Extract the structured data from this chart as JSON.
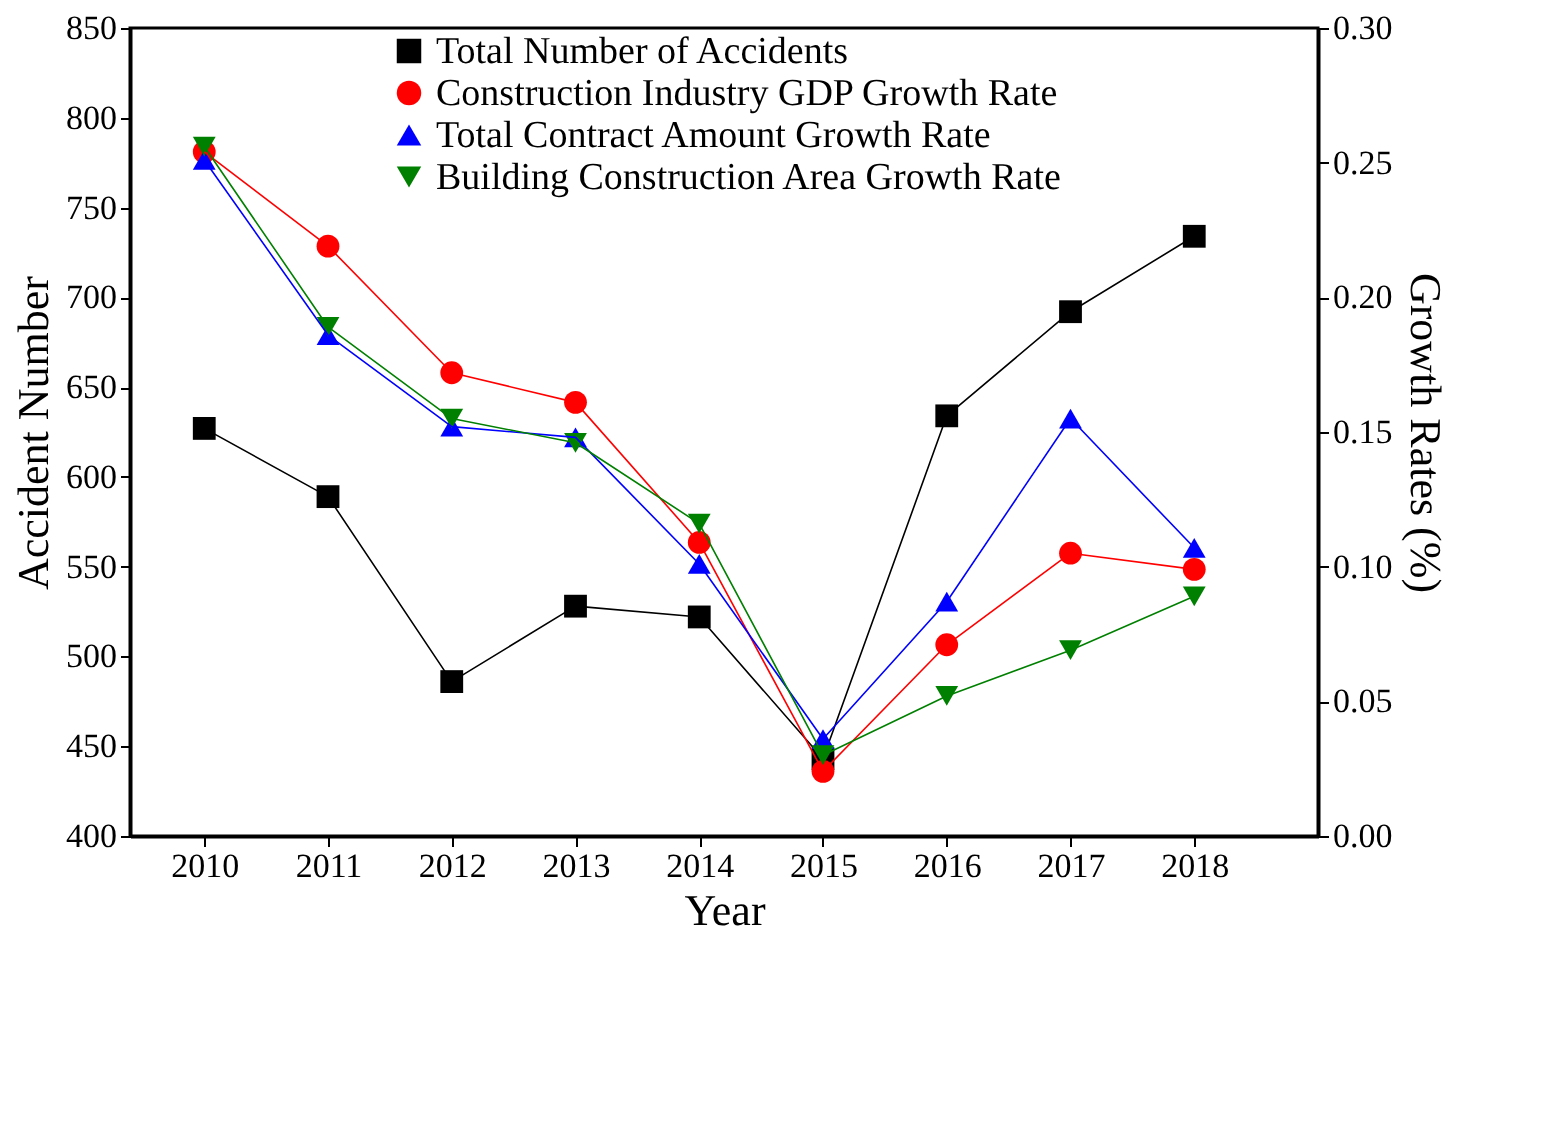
{
  "chart_data": {
    "type": "line",
    "xlabel": "Year",
    "ylabel": "Accident Number",
    "y2label": "Growth Rates (%)",
    "x": [
      2010,
      2011,
      2012,
      2013,
      2014,
      2015,
      2016,
      2017,
      2018
    ],
    "xlim": [
      2009.4,
      2019
    ],
    "xticks": [
      2010,
      2011,
      2012,
      2013,
      2014,
      2015,
      2016,
      2017,
      2018
    ],
    "ylim": [
      400,
      850
    ],
    "yticks": [
      400,
      450,
      500,
      550,
      600,
      650,
      700,
      750,
      800,
      850
    ],
    "y2lim": [
      0,
      0.3
    ],
    "y2ticks": [
      {
        "value": 0,
        "label": "0.00"
      },
      {
        "value": 0.05,
        "label": "0.05"
      },
      {
        "value": 0.1,
        "label": "0.10"
      },
      {
        "value": 0.15,
        "label": "0.15"
      },
      {
        "value": 0.2,
        "label": "0.20"
      },
      {
        "value": 0.25,
        "label": "0.25"
      },
      {
        "value": 0.3,
        "label": "0.30"
      }
    ],
    "grid": false,
    "legend": "top",
    "line_style": "solid",
    "series": [
      {
        "name": "Total Number of Accidents",
        "color": "#000000",
        "marker": "square",
        "values": [
          627,
          589,
          486,
          528,
          522,
          443,
          634,
          692,
          734
        ]
      },
      {
        "name": "Construction Industry GDP Growth Rate",
        "color": "#ff0000",
        "marker": "circle",
        "axis": "y2",
        "values": [
          0.254,
          0.219,
          0.172,
          0.161,
          0.109,
          0.024,
          0.071,
          0.105,
          0.099
        ]
      },
      {
        "name": "Total Contract Amount Growth Rate",
        "color": "#0000ff",
        "marker": "triangle",
        "axis": "y2",
        "values": [
          0.251,
          0.186,
          0.152,
          0.148,
          0.101,
          0.036,
          0.087,
          0.155,
          0.107
        ]
      },
      {
        "name": "Building Construction Area Growth Rate",
        "color": "#008000",
        "marker": "triangle-down",
        "axis": "y2",
        "values": [
          0.256,
          0.189,
          0.155,
          0.146,
          0.116,
          0.03,
          0.052,
          0.069,
          0.089
        ]
      }
    ]
  }
}
